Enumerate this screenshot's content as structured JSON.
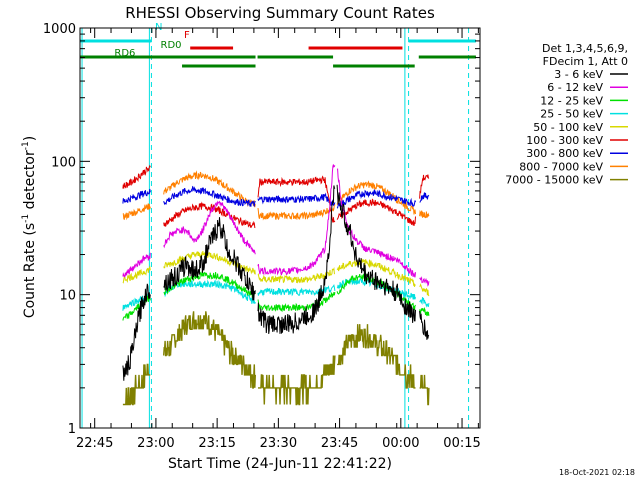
{
  "chart_data": {
    "type": "line",
    "title": "RHESSI Observing Summary Count Rates",
    "xlabel": "Start Time (24-Jun-11 22:41:22)",
    "ylabel_main": "Count Rate (s",
    "ylabel_sup1": "-1",
    "ylabel_mid": " detector",
    "ylabel_sup2": "-1",
    "ylabel_end": ")",
    "timestamp": "18-Oct-2021 02:18",
    "yscale": "log",
    "ylim": [
      1,
      1000
    ],
    "xlim_minutes_after_2241": [
      0,
      98
    ],
    "x_ticks": [
      {
        "label": "22:45",
        "min": 3.6
      },
      {
        "label": "23:00",
        "min": 18.6
      },
      {
        "label": "23:15",
        "min": 33.6
      },
      {
        "label": "23:30",
        "min": 48.6
      },
      {
        "label": "23:45",
        "min": 63.6
      },
      {
        "label": "00:00",
        "min": 78.6
      },
      {
        "label": "00:15",
        "min": 93.6
      }
    ],
    "y_ticks": [
      {
        "label": "1",
        "value": 1
      },
      {
        "label": "10",
        "value": 10
      },
      {
        "label": "100",
        "value": 100
      },
      {
        "label": "1000",
        "value": 1000
      }
    ],
    "legend": {
      "header": [
        "Det 1,3,4,5,6,9,",
        "FDecim 1, Att 0"
      ],
      "entries": [
        {
          "label": "3 - 6 keV",
          "color": "#000000"
        },
        {
          "label": "6 - 12 keV",
          "color": "#e000e0"
        },
        {
          "label": "12 - 25 keV",
          "color": "#00e000"
        },
        {
          "label": "25 - 50 keV",
          "color": "#00e0e0"
        },
        {
          "label": "50 - 100 keV",
          "color": "#d8d800"
        },
        {
          "label": "100 - 300 keV",
          "color": "#e00000"
        },
        {
          "label": "300 - 800 keV",
          "color": "#0000e0"
        },
        {
          "label": "800 - 7000 keV",
          "color": "#ff8000"
        },
        {
          "label": "7000 - 15000 keV",
          "color": "#808000"
        }
      ]
    },
    "flags": [
      {
        "label": "N",
        "color": "#00e0e0",
        "segments": [
          [
            0,
            17.5
          ],
          [
            80.5,
            97
          ]
        ]
      },
      {
        "label": "F",
        "color": "#e00000",
        "segments": [
          [
            27,
            37.5
          ],
          [
            56,
            79
          ]
        ]
      },
      {
        "label": "RD0",
        "color": "#008000",
        "segments": [
          [
            0,
            43
          ],
          [
            43.5,
            62
          ],
          [
            83,
            97
          ]
        ]
      },
      {
        "label": "RD6",
        "color": "#008000",
        "segments": [
          [
            25,
            43
          ],
          [
            62,
            82
          ]
        ]
      }
    ],
    "saa_boundaries": [
      17.5,
      80.5,
      95.2
    ],
    "night_boundaries": [
      0.5,
      17.0,
      79.6
    ],
    "data_gaps": [
      [
        17.3,
        20.5
      ],
      [
        43,
        43.6
      ],
      [
        62.5,
        63
      ],
      [
        82.3,
        83.2
      ],
      [
        85.6,
        98
      ]
    ],
    "data_intervals": [
      [
        10.5,
        17.3
      ],
      [
        20.5,
        43
      ],
      [
        43.6,
        62.5
      ],
      [
        63,
        82.3
      ],
      [
        83.2,
        85.6
      ]
    ],
    "series": [
      {
        "name": "3 - 6 keV",
        "color": "#000000",
        "x": [
          10.5,
          12,
          13,
          14,
          15,
          16,
          17,
          18,
          19,
          20,
          22,
          24,
          26,
          28,
          30,
          32,
          34,
          35,
          36,
          38,
          40,
          42,
          43,
          44,
          46,
          48,
          50,
          52,
          54,
          56,
          58,
          59,
          60,
          61,
          62,
          63,
          64,
          66,
          68,
          70,
          72,
          74,
          76,
          78,
          80,
          82,
          84,
          85,
          86
        ],
        "y": [
          2.5,
          3,
          4,
          6,
          8,
          10,
          11,
          12,
          12.5,
          12,
          13,
          14,
          17,
          15,
          17,
          25,
          33,
          30,
          22,
          18,
          14,
          11,
          10,
          7,
          6,
          6,
          6,
          6,
          6.5,
          7,
          8,
          10,
          13,
          20,
          55,
          60,
          45,
          30,
          18,
          14,
          13,
          12,
          11,
          10,
          8,
          7,
          6,
          5,
          4.5
        ]
      },
      {
        "name": "6 - 12 keV",
        "color": "#e000e0",
        "x": [
          10.5,
          12,
          14,
          16,
          18,
          20,
          22,
          24,
          26,
          28,
          30,
          32,
          34,
          36,
          38,
          40,
          42,
          43,
          44,
          48,
          52,
          56,
          58,
          60,
          61,
          62,
          63,
          64,
          66,
          68,
          70,
          72,
          74,
          76,
          78,
          80,
          82,
          84,
          86
        ],
        "y": [
          14,
          15,
          17,
          19,
          20,
          22,
          28,
          30,
          31,
          25,
          30,
          42,
          51,
          42,
          33,
          26,
          22,
          21,
          15,
          15,
          15,
          16,
          18,
          22,
          40,
          90,
          90,
          50,
          30,
          25,
          22,
          21,
          20,
          19,
          18,
          16,
          14,
          13,
          12
        ]
      },
      {
        "name": "12 - 25 keV",
        "color": "#00e000",
        "x": [
          10.5,
          12,
          14,
          16,
          18,
          20,
          22,
          24,
          26,
          28,
          30,
          32,
          34,
          36,
          38,
          40,
          42,
          43,
          44,
          48,
          52,
          56,
          58,
          60,
          62,
          64,
          66,
          68,
          70,
          72,
          74,
          76,
          78,
          80,
          82,
          84,
          86
        ],
        "y": [
          6.5,
          7,
          8,
          9,
          10,
          10.5,
          11,
          12,
          13,
          13.5,
          14,
          14,
          14,
          13,
          12,
          11,
          10,
          10,
          8,
          8,
          8,
          8,
          8.5,
          9,
          10,
          11,
          13,
          13.5,
          13.5,
          13,
          12,
          11,
          10,
          9,
          8,
          7.5,
          7
        ]
      },
      {
        "name": "25 - 50 keV",
        "color": "#00e0e0",
        "x": [
          10.5,
          12,
          14,
          16,
          18,
          20,
          22,
          24,
          26,
          28,
          30,
          32,
          34,
          36,
          38,
          40,
          42,
          43,
          44,
          48,
          52,
          56,
          58,
          60,
          62,
          64,
          66,
          68,
          70,
          72,
          74,
          76,
          78,
          80,
          82,
          84,
          86
        ],
        "y": [
          8,
          8.5,
          9,
          9.5,
          10,
          10,
          11,
          12,
          12,
          12,
          12,
          12,
          12,
          11.5,
          11,
          10,
          9,
          9,
          10.5,
          10.5,
          10.5,
          10.5,
          10.5,
          11,
          11,
          12,
          12.5,
          12.5,
          12.5,
          12,
          11.5,
          11,
          10.5,
          10,
          9.5,
          9,
          8
        ]
      },
      {
        "name": "50 - 100 keV",
        "color": "#d8d800",
        "x": [
          10.5,
          12,
          14,
          16,
          18,
          20,
          22,
          24,
          26,
          28,
          30,
          32,
          34,
          36,
          38,
          40,
          42,
          43,
          44,
          48,
          52,
          56,
          58,
          60,
          62,
          64,
          66,
          68,
          70,
          72,
          74,
          76,
          78,
          80,
          82,
          84,
          86
        ],
        "y": [
          13,
          13.5,
          14,
          15,
          16,
          16,
          17,
          18,
          19,
          20,
          20,
          20,
          19,
          18,
          17,
          16,
          15,
          15,
          13,
          13,
          13,
          13,
          13.5,
          14,
          15,
          16,
          17,
          17.5,
          17.5,
          17,
          16,
          15,
          14,
          13,
          12,
          11,
          10
        ]
      },
      {
        "name": "100 - 300 keV",
        "color": "#e00000",
        "x": [
          10.5,
          12,
          14,
          16,
          18,
          20,
          22,
          24,
          26,
          28,
          30,
          32,
          34,
          36,
          38,
          40,
          42,
          43,
          44,
          48,
          52,
          56,
          58,
          60,
          62,
          64,
          66,
          68,
          70,
          72,
          74,
          76,
          78,
          80,
          82,
          84,
          86
        ],
        "y": [
          65,
          68,
          75,
          85,
          90,
          33,
          36,
          40,
          43,
          45,
          46,
          45,
          43,
          40,
          37,
          35,
          33,
          33,
          70,
          70,
          70,
          70,
          72,
          73,
          36,
          39,
          43,
          47,
          49,
          49,
          47,
          44,
          41,
          37,
          34,
          75,
          75
        ]
      },
      {
        "name": "300 - 800 keV",
        "color": "#0000e0",
        "x": [
          10.5,
          12,
          14,
          16,
          18,
          20,
          22,
          24,
          26,
          28,
          30,
          32,
          34,
          36,
          38,
          40,
          42,
          43,
          44,
          48,
          52,
          56,
          58,
          60,
          62,
          64,
          66,
          68,
          70,
          72,
          74,
          76,
          78,
          80,
          82,
          84,
          86
        ],
        "y": [
          50,
          52,
          55,
          58,
          60,
          48,
          52,
          57,
          60,
          61,
          60,
          58,
          55,
          52,
          50,
          49,
          48,
          48,
          52,
          52,
          52,
          52,
          53,
          54,
          47,
          48,
          52,
          56,
          58,
          58,
          56,
          54,
          52,
          50,
          48,
          55,
          55
        ]
      },
      {
        "name": "800 - 7000 keV",
        "color": "#ff8000",
        "x": [
          10.5,
          12,
          14,
          16,
          18,
          20,
          22,
          24,
          26,
          28,
          30,
          32,
          34,
          36,
          38,
          40,
          42,
          43,
          44,
          48,
          52,
          56,
          58,
          60,
          62,
          64,
          66,
          68,
          70,
          72,
          74,
          76,
          78,
          80,
          82,
          84,
          86
        ],
        "y": [
          38,
          40,
          42,
          45,
          47,
          58,
          63,
          70,
          75,
          78,
          79,
          76,
          70,
          64,
          58,
          52,
          48,
          48,
          39,
          39,
          39,
          39,
          40,
          42,
          45,
          52,
          60,
          65,
          67,
          66,
          62,
          57,
          51,
          46,
          42,
          40,
          40
        ]
      },
      {
        "name": "7000 - 15000 keV",
        "color": "#808000",
        "x": [
          10.5,
          12,
          14,
          16,
          18,
          20,
          22,
          24,
          26,
          28,
          30,
          32,
          34,
          36,
          38,
          40,
          42,
          43,
          44,
          48,
          52,
          56,
          58,
          60,
          62,
          64,
          66,
          68,
          70,
          72,
          74,
          76,
          78,
          80,
          82,
          84,
          86
        ],
        "y": [
          1.5,
          1.7,
          2,
          2.5,
          3,
          3.5,
          4,
          5,
          6,
          6.5,
          6.5,
          6,
          5,
          4,
          3.5,
          3,
          2.5,
          2.5,
          2,
          2,
          2,
          2,
          2.2,
          2.5,
          3,
          3.5,
          4.5,
          5,
          5,
          4.5,
          4,
          3.5,
          3,
          2.5,
          2.2,
          2,
          1.8
        ]
      }
    ]
  }
}
